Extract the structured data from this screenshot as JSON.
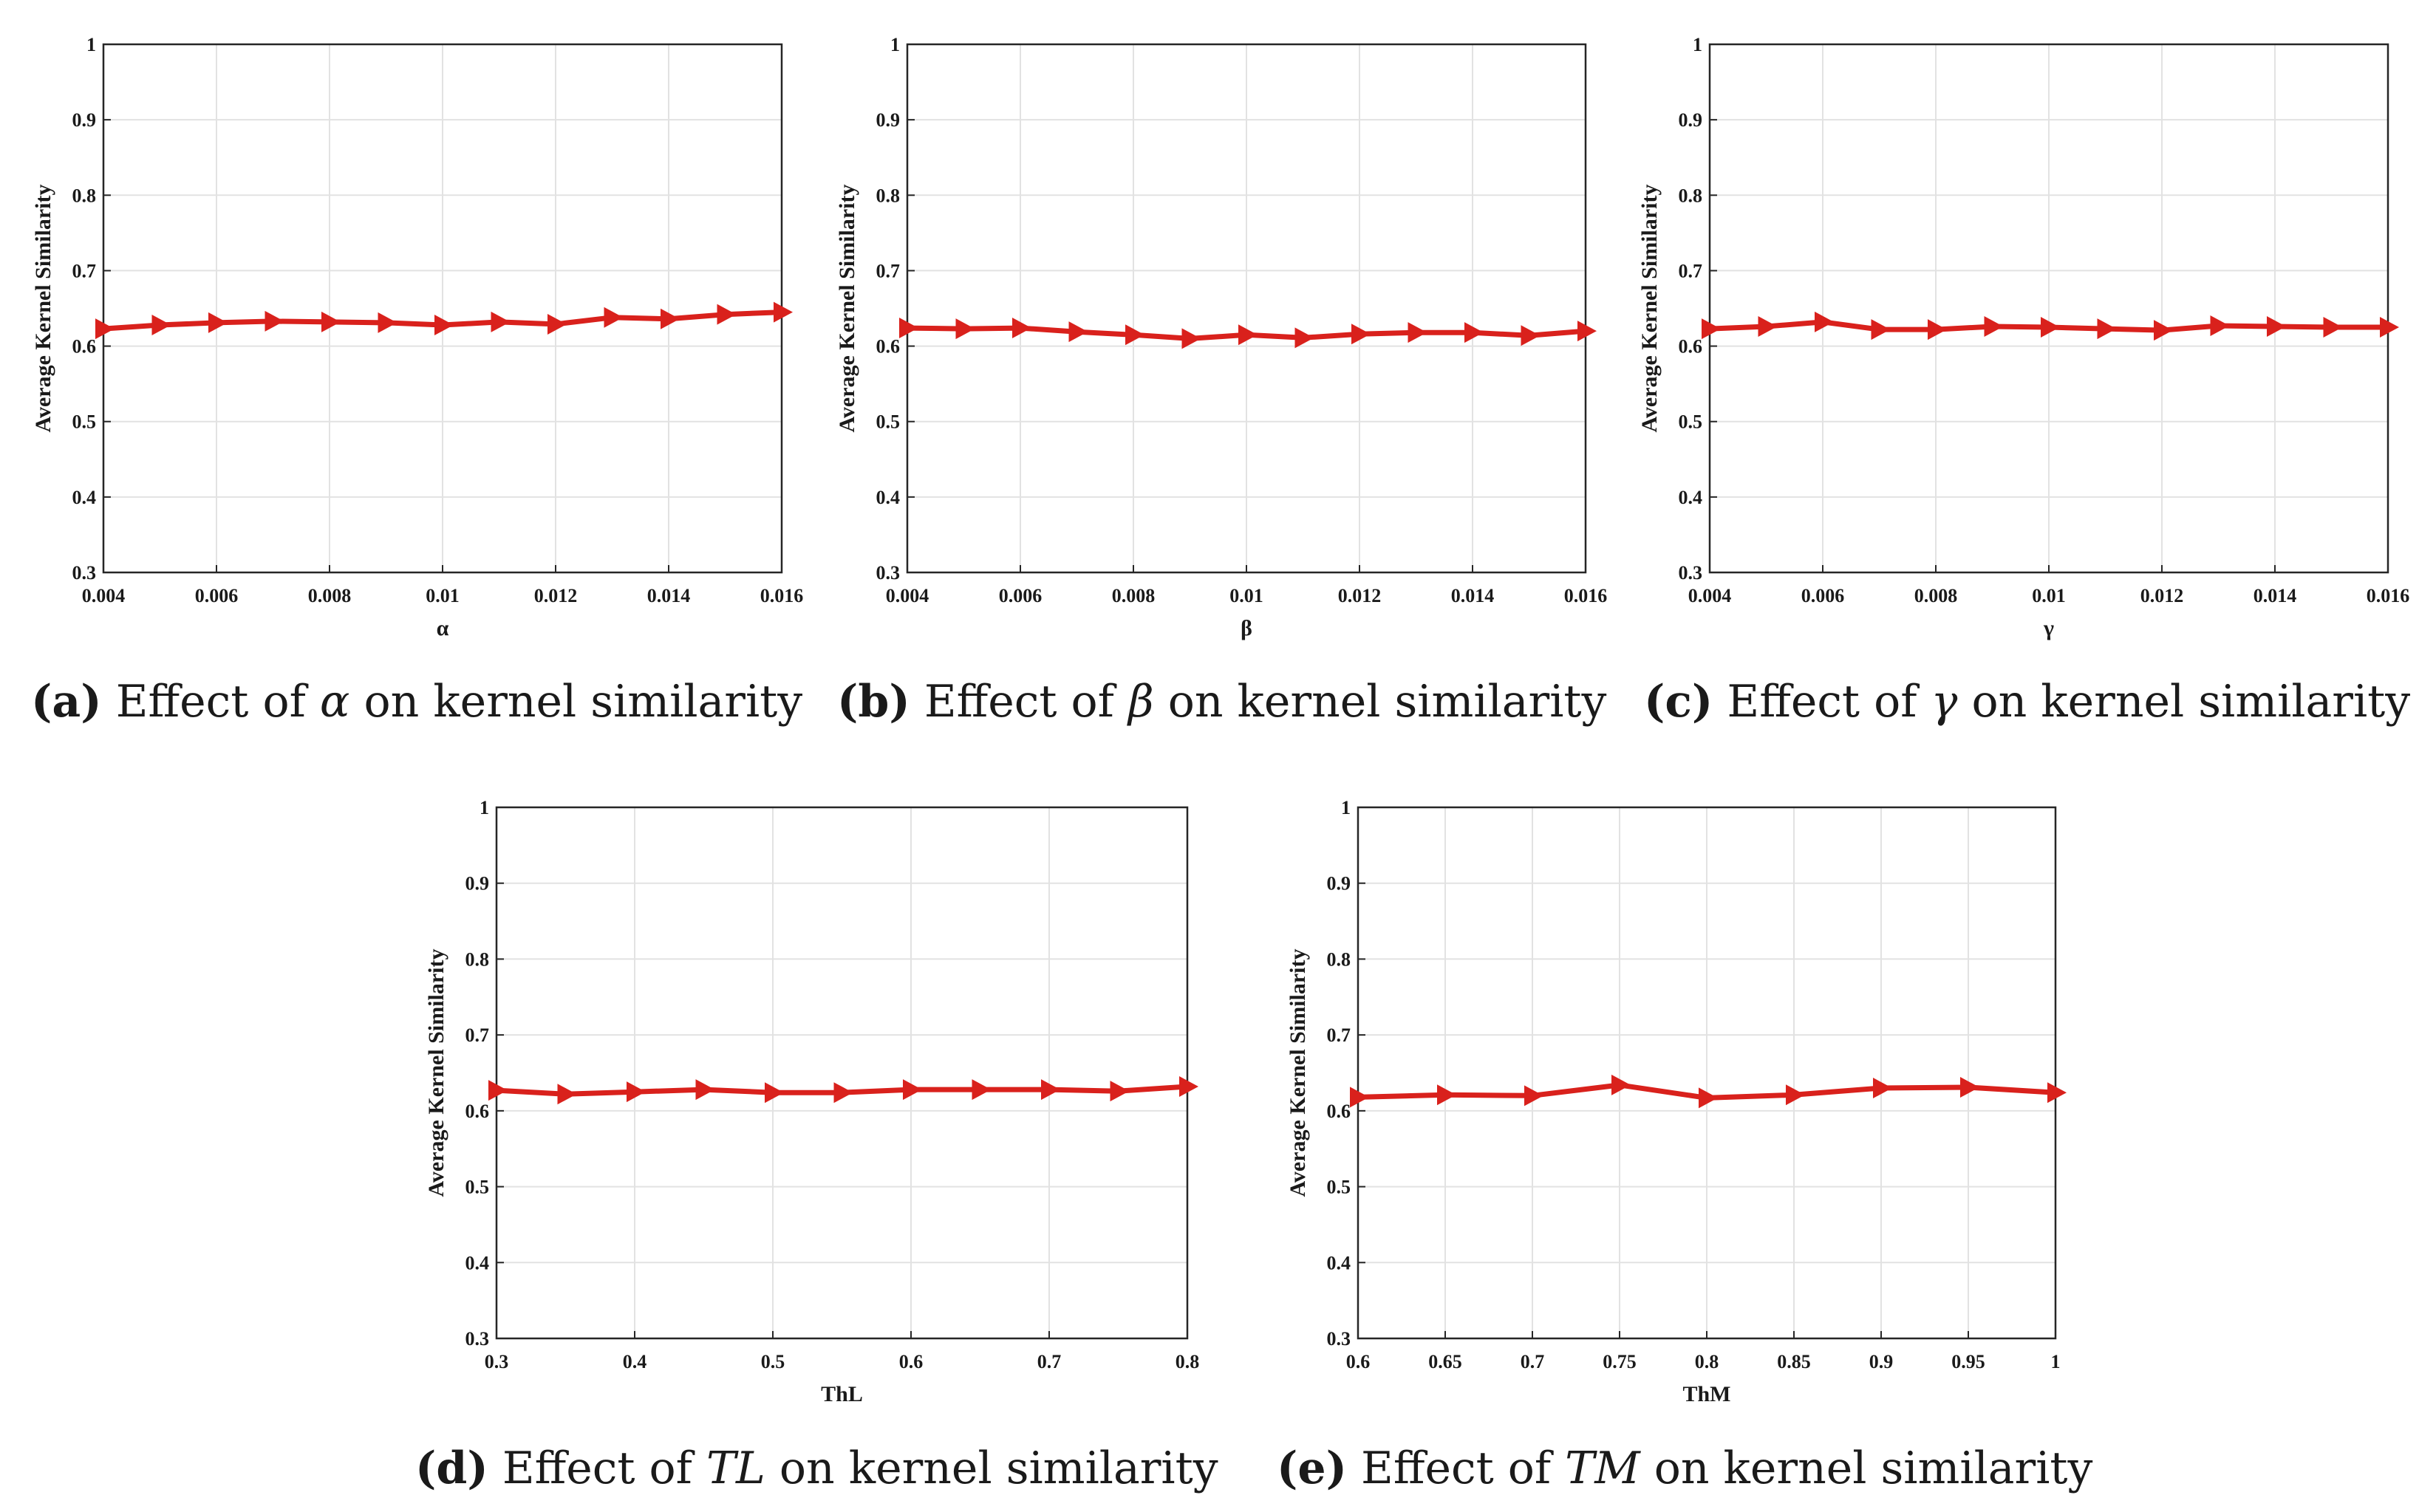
{
  "chart_data": [
    {
      "type": "line",
      "panel": "a",
      "xlabel": "α",
      "ylabel": "Average Kernel Similarity",
      "xlim": [
        0.004,
        0.016
      ],
      "ylim": [
        0.3,
        1
      ],
      "xticks": [
        "0.004",
        "0.006",
        "0.008",
        "0.01",
        "0.012",
        "0.014",
        "0.016"
      ],
      "yticks": [
        "0.3",
        "0.4",
        "0.5",
        "0.6",
        "0.7",
        "0.8",
        "0.9",
        "1"
      ],
      "x": [
        0.004,
        0.005,
        0.006,
        0.007,
        0.008,
        0.009,
        0.01,
        0.011,
        0.012,
        0.013,
        0.014,
        0.015,
        0.016
      ],
      "values": [
        0.623,
        0.628,
        0.631,
        0.633,
        0.632,
        0.631,
        0.628,
        0.632,
        0.629,
        0.638,
        0.636,
        0.642,
        0.645
      ],
      "caption": {
        "tag": "(a)",
        "pre": "Effect of",
        "sym": "α",
        "post": "on kernel similarity"
      }
    },
    {
      "type": "line",
      "panel": "b",
      "xlabel": "β",
      "ylabel": "Average Kernel Similarity",
      "xlim": [
        0.004,
        0.016
      ],
      "ylim": [
        0.3,
        1
      ],
      "xticks": [
        "0.004",
        "0.006",
        "0.008",
        "0.01",
        "0.012",
        "0.014",
        "0.016"
      ],
      "yticks": [
        "0.3",
        "0.4",
        "0.5",
        "0.6",
        "0.7",
        "0.8",
        "0.9",
        "1"
      ],
      "x": [
        0.004,
        0.005,
        0.006,
        0.007,
        0.008,
        0.009,
        0.01,
        0.011,
        0.012,
        0.013,
        0.014,
        0.015,
        0.016
      ],
      "values": [
        0.624,
        0.623,
        0.624,
        0.619,
        0.615,
        0.61,
        0.615,
        0.611,
        0.616,
        0.618,
        0.618,
        0.614,
        0.62
      ],
      "caption": {
        "tag": "(b)",
        "pre": "Effect of",
        "sym": "β",
        "post": "on kernel similarity"
      }
    },
    {
      "type": "line",
      "panel": "c",
      "xlabel": "γ",
      "ylabel": "Average Kernel Similarity",
      "xlim": [
        0.004,
        0.016
      ],
      "ylim": [
        0.3,
        1
      ],
      "xticks": [
        "0.004",
        "0.006",
        "0.008",
        "0.01",
        "0.012",
        "0.014",
        "0.016"
      ],
      "yticks": [
        "0.3",
        "0.4",
        "0.5",
        "0.6",
        "0.7",
        "0.8",
        "0.9",
        "1"
      ],
      "x": [
        0.004,
        0.005,
        0.006,
        0.007,
        0.008,
        0.009,
        0.01,
        0.011,
        0.012,
        0.013,
        0.014,
        0.015,
        0.016
      ],
      "values": [
        0.623,
        0.626,
        0.632,
        0.622,
        0.622,
        0.626,
        0.625,
        0.623,
        0.621,
        0.627,
        0.626,
        0.625,
        0.625
      ],
      "caption": {
        "tag": "(c)",
        "pre": "Effect of",
        "sym": "γ",
        "post": "on kernel similarity"
      }
    },
    {
      "type": "line",
      "panel": "d",
      "xlabel": "ThL",
      "ylabel": "Average Kernel Similarity",
      "xlim": [
        0.3,
        0.8
      ],
      "ylim": [
        0.3,
        1
      ],
      "xticks": [
        "0.3",
        "0.4",
        "0.5",
        "0.6",
        "0.7",
        "0.8"
      ],
      "yticks": [
        "0.3",
        "0.4",
        "0.5",
        "0.6",
        "0.7",
        "0.8",
        "0.9",
        "1"
      ],
      "x": [
        0.3,
        0.35,
        0.4,
        0.45,
        0.5,
        0.55,
        0.6,
        0.65,
        0.7,
        0.75,
        0.8
      ],
      "values": [
        0.627,
        0.622,
        0.625,
        0.628,
        0.624,
        0.624,
        0.628,
        0.628,
        0.628,
        0.626,
        0.632
      ],
      "caption": {
        "tag": "(d)",
        "pre": "Effect of",
        "sym": "TL",
        "post": "on kernel similarity"
      }
    },
    {
      "type": "line",
      "panel": "e",
      "xlabel": "ThM",
      "ylabel": "Average Kernel Similarity",
      "xlim": [
        0.6,
        1
      ],
      "ylim": [
        0.3,
        1
      ],
      "xticks": [
        "0.6",
        "0.65",
        "0.7",
        "0.75",
        "0.8",
        "0.85",
        "0.9",
        "0.95",
        "1"
      ],
      "yticks": [
        "0.3",
        "0.4",
        "0.5",
        "0.6",
        "0.7",
        "0.8",
        "0.9",
        "1"
      ],
      "x": [
        0.6,
        0.65,
        0.7,
        0.75,
        0.8,
        0.85,
        0.9,
        0.95,
        1.0
      ],
      "values": [
        0.618,
        0.621,
        0.62,
        0.634,
        0.617,
        0.621,
        0.63,
        0.631,
        0.624
      ],
      "caption": {
        "tag": "(e)",
        "pre": "Effect of",
        "sym": "TM",
        "post": "on kernel similarity"
      }
    }
  ],
  "colors": {
    "series": "#d9211c",
    "grid": "#e2e2e2",
    "axis": "#262626"
  }
}
